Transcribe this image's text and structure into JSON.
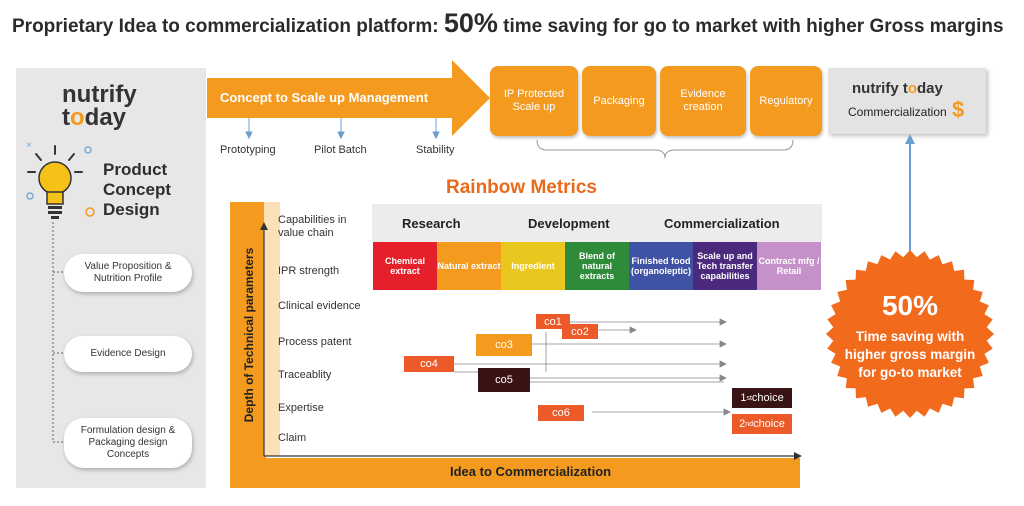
{
  "title": {
    "pre": "Proprietary Idea to commercialization platform: ",
    "big": "50%",
    "post": " time saving for go to market with higher Gross margins"
  },
  "left": {
    "logo_line1": "nutrify",
    "logo_line2_a": "t",
    "logo_line2_o": "o",
    "logo_line2_b": "day",
    "heading_1": "Product",
    "heading_2": "Concept",
    "heading_3": "Design",
    "items": [
      "Value Proposition & Nutrition Profile",
      "Evidence Design",
      "Formulation design & Packaging design Concepts"
    ]
  },
  "flow": {
    "arrow_label": "Concept to Scale up Management",
    "sub_labels": [
      "Prototyping",
      "Pilot Batch",
      "Stability"
    ],
    "stages": [
      "IP Protected Scale up",
      "Packaging",
      "Evidence creation",
      "Regulatory"
    ]
  },
  "right": {
    "logo_a": "nutrify t",
    "logo_o": "o",
    "logo_b": "day",
    "label": "Commercialization",
    "dollar": "$",
    "badge_big": "50%",
    "badge_text": "Time saving with higher gross margin for go-to market"
  },
  "rainbow": {
    "title": "Rainbow Metrics",
    "y_axis": "Depth of Technical parameters",
    "x_axis": "Idea to Commercialization",
    "rows": [
      "Capabilities in value chain",
      "IPR strength",
      "Clinical evidence",
      "Process patent",
      "Traceablity",
      "Expertise",
      "Claim"
    ],
    "headers": [
      "Research",
      "Development",
      "Commercialization"
    ],
    "bands": [
      {
        "label": "Chemical extract",
        "color": "#e5202a"
      },
      {
        "label": "Natural extract",
        "color": "#f39a1f"
      },
      {
        "label": "Ingredient",
        "color": "#e8c81f"
      },
      {
        "label": "Blend of natural extracts",
        "color": "#2e8b3a"
      },
      {
        "label": "Finished food (organoleptic)",
        "color": "#3f52a3"
      },
      {
        "label": "Scale up and Tech transfer capabilities",
        "color": "#4b2a7d"
      },
      {
        "label": "Contract mfg / Retail",
        "color": "#c691c8"
      }
    ],
    "cos": [
      "co1",
      "co2",
      "co3",
      "co4",
      "co5",
      "co6"
    ],
    "legend_1_pre": "1",
    "legend_1_sup": "st",
    "legend_1_post": " choice",
    "legend_2_pre": "2",
    "legend_2_sup": "nd",
    "legend_2_post": " choice",
    "colors": {
      "first": "#3a1414",
      "second": "#ec5a2a",
      "orange": "#f39a1f"
    }
  }
}
